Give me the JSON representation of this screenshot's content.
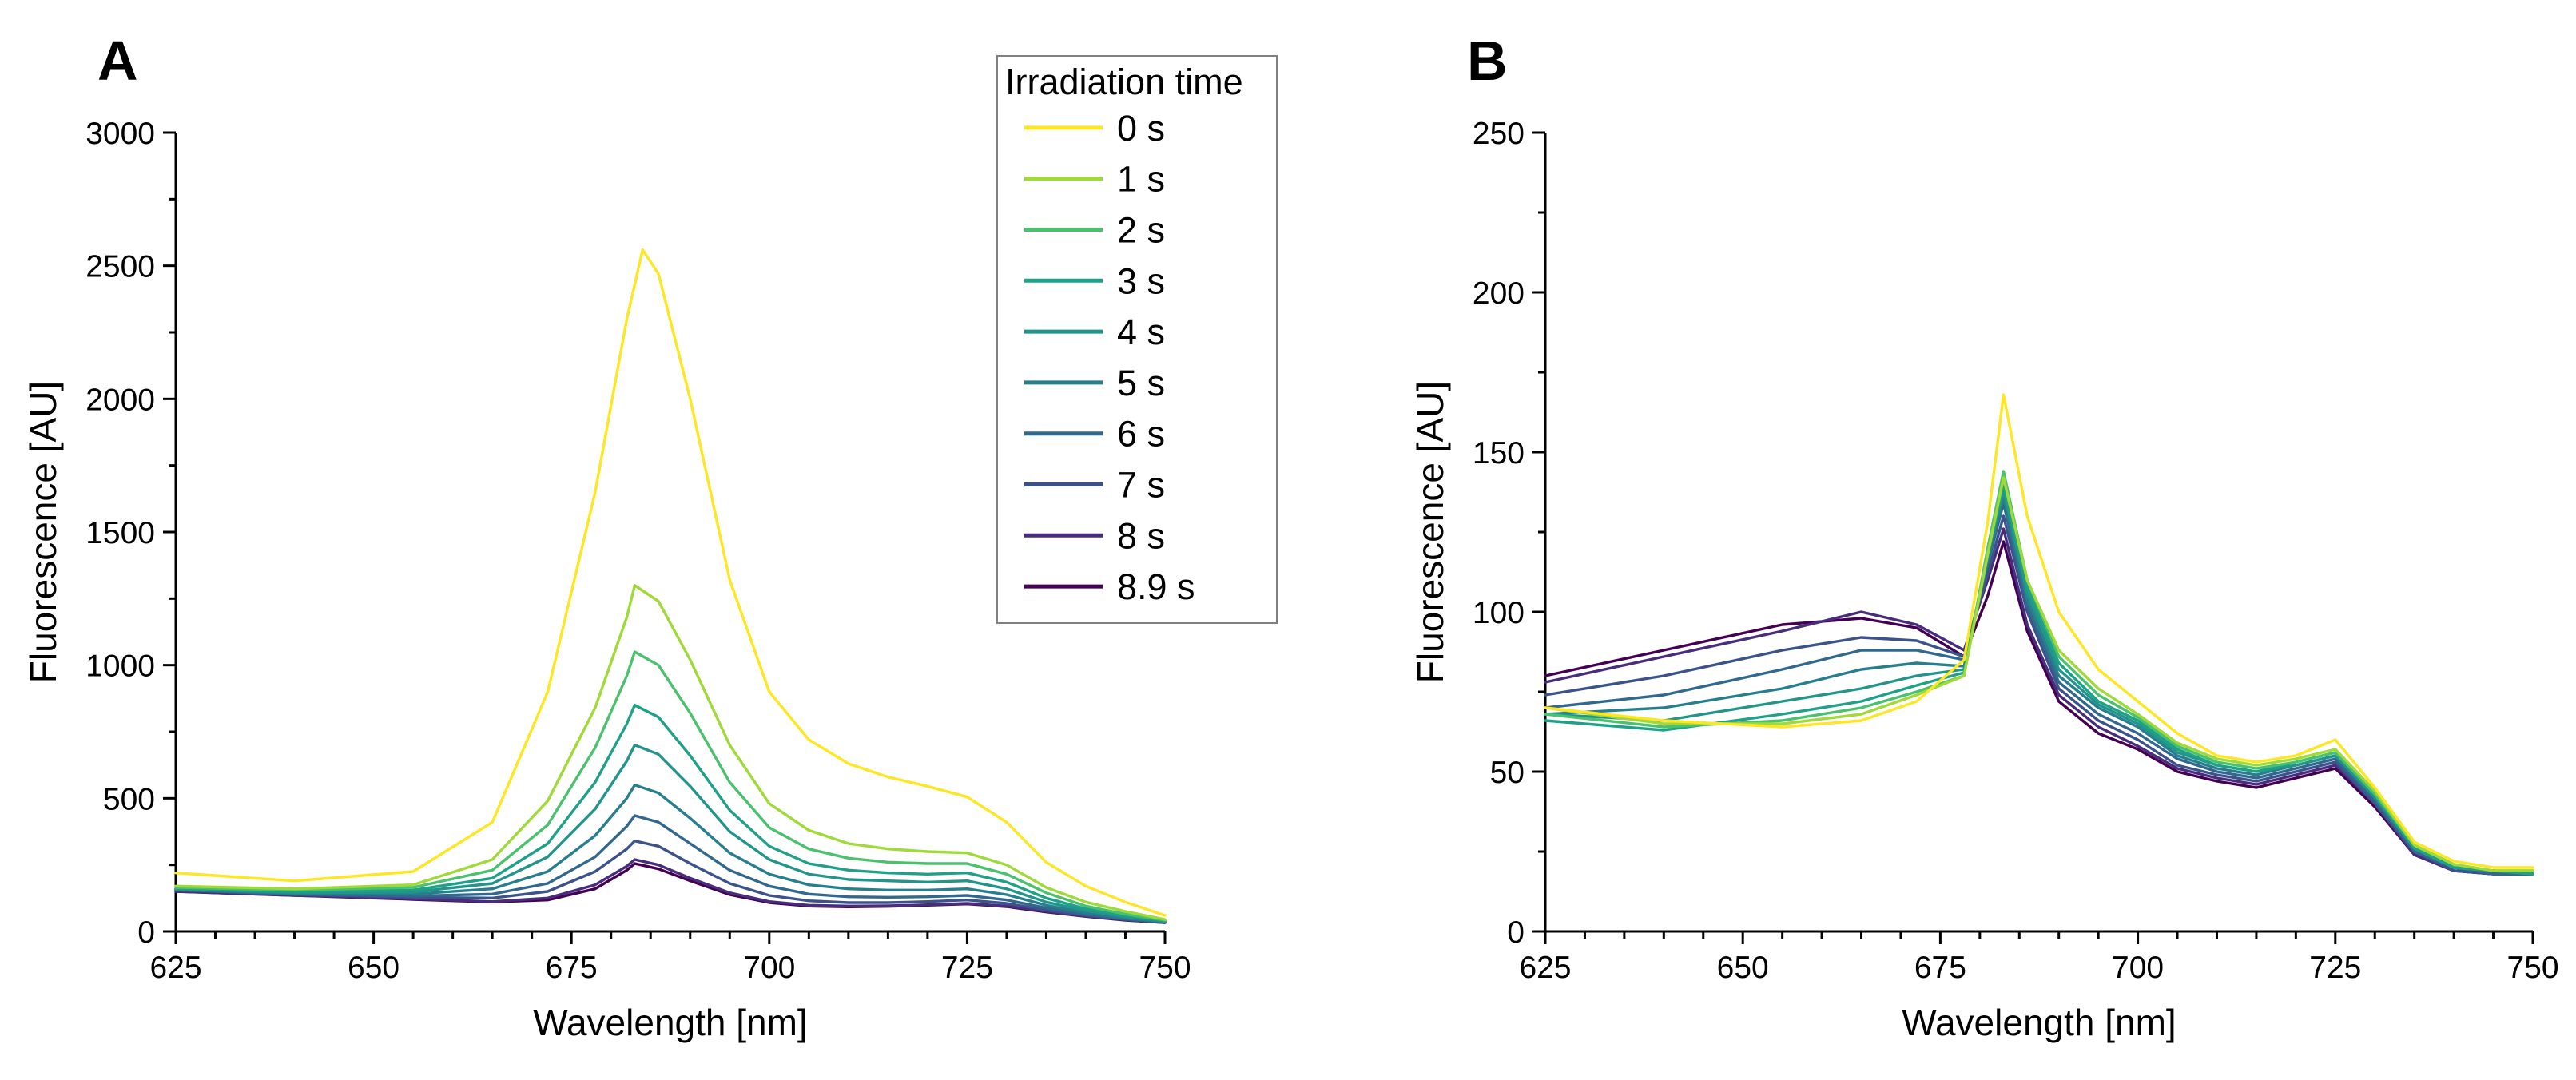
{
  "chart_data": [
    {
      "panel": "A",
      "type": "line",
      "title": "",
      "xlabel": "Wavelength [nm]",
      "ylabel": "Fluorescence [AU]",
      "xlim": [
        625,
        750
      ],
      "ylim": [
        0,
        3000
      ],
      "xticks": [
        625,
        650,
        675,
        700,
        725,
        750
      ],
      "yticks": [
        0,
        500,
        1000,
        1500,
        2000,
        2500,
        3000
      ],
      "legend": {
        "title": "Irradiation time",
        "position": "top-right-inside",
        "entries": [
          "0 s",
          "1 s",
          "2 s",
          "3 s",
          "4 s",
          "5 s",
          "6 s",
          "7 s",
          "8 s",
          "8.9 s"
        ]
      },
      "series": [
        {
          "name": "0 s",
          "color": "#fde725",
          "x": [
            625,
            640,
            655,
            665,
            672,
            678,
            682,
            684,
            686,
            690,
            695,
            700,
            705,
            710,
            715,
            720,
            725,
            730,
            735,
            740,
            745,
            750
          ],
          "y": [
            220,
            190,
            225,
            410,
            900,
            1650,
            2300,
            2560,
            2470,
            2000,
            1320,
            900,
            720,
            630,
            580,
            545,
            505,
            410,
            260,
            170,
            110,
            60
          ]
        },
        {
          "name": "1 s",
          "color": "#a0da39",
          "x": [
            625,
            640,
            655,
            665,
            672,
            678,
            682,
            683,
            686,
            690,
            695,
            700,
            705,
            710,
            715,
            720,
            725,
            730,
            735,
            740,
            745,
            750
          ],
          "y": [
            170,
            160,
            175,
            270,
            490,
            840,
            1180,
            1300,
            1240,
            1020,
            700,
            480,
            380,
            330,
            310,
            300,
            295,
            250,
            165,
            110,
            75,
            45
          ]
        },
        {
          "name": "2 s",
          "color": "#4ac16d",
          "x": [
            625,
            640,
            655,
            665,
            672,
            678,
            682,
            683,
            686,
            690,
            695,
            700,
            705,
            710,
            715,
            720,
            725,
            730,
            735,
            740,
            745,
            750
          ],
          "y": [
            165,
            155,
            165,
            230,
            400,
            690,
            960,
            1050,
            1000,
            820,
            560,
            390,
            310,
            275,
            260,
            255,
            255,
            215,
            145,
            95,
            65,
            42
          ]
        },
        {
          "name": "3 s",
          "color": "#1fa187",
          "x": [
            625,
            640,
            655,
            665,
            672,
            678,
            682,
            683,
            686,
            690,
            695,
            700,
            705,
            710,
            715,
            720,
            725,
            730,
            735,
            740,
            745,
            750
          ],
          "y": [
            160,
            150,
            155,
            200,
            330,
            560,
            780,
            850,
            805,
            660,
            455,
            320,
            255,
            230,
            220,
            215,
            220,
            185,
            125,
            85,
            60,
            40
          ]
        },
        {
          "name": "4 s",
          "color": "#22958b",
          "x": [
            625,
            640,
            655,
            665,
            672,
            678,
            682,
            683,
            686,
            690,
            695,
            700,
            705,
            710,
            715,
            720,
            725,
            730,
            735,
            740,
            745,
            750
          ],
          "y": [
            160,
            145,
            148,
            180,
            280,
            460,
            640,
            700,
            665,
            545,
            375,
            270,
            215,
            195,
            190,
            185,
            190,
            160,
            110,
            78,
            55,
            38
          ]
        },
        {
          "name": "5 s",
          "color": "#277f8e",
          "x": [
            625,
            640,
            655,
            665,
            672,
            678,
            682,
            683,
            686,
            690,
            695,
            700,
            705,
            710,
            715,
            720,
            725,
            730,
            735,
            740,
            745,
            750
          ],
          "y": [
            158,
            142,
            140,
            160,
            225,
            360,
            500,
            550,
            520,
            425,
            295,
            215,
            175,
            160,
            155,
            155,
            160,
            138,
            98,
            70,
            50,
            36
          ]
        },
        {
          "name": "6 s",
          "color": "#31688e",
          "x": [
            625,
            640,
            655,
            665,
            672,
            678,
            682,
            683,
            686,
            690,
            695,
            700,
            705,
            710,
            715,
            720,
            725,
            730,
            735,
            740,
            745,
            750
          ],
          "y": [
            155,
            140,
            133,
            140,
            180,
            280,
            395,
            435,
            410,
            330,
            230,
            170,
            140,
            130,
            128,
            130,
            135,
            118,
            88,
            64,
            47,
            35
          ]
        },
        {
          "name": "7 s",
          "color": "#3b528b",
          "x": [
            625,
            640,
            655,
            665,
            672,
            678,
            682,
            683,
            686,
            690,
            695,
            700,
            705,
            710,
            715,
            720,
            725,
            730,
            735,
            740,
            745,
            750
          ],
          "y": [
            155,
            138,
            128,
            125,
            150,
            225,
            310,
            340,
            320,
            255,
            180,
            135,
            115,
            108,
            108,
            112,
            118,
            105,
            80,
            60,
            45,
            34
          ]
        },
        {
          "name": "8 s",
          "color": "#472d7b",
          "x": [
            625,
            640,
            655,
            665,
            672,
            678,
            682,
            683,
            686,
            690,
            695,
            700,
            705,
            710,
            715,
            720,
            725,
            730,
            735,
            740,
            745,
            750
          ],
          "y": [
            150,
            135,
            122,
            112,
            125,
            175,
            245,
            270,
            250,
            200,
            145,
            112,
            98,
            95,
            96,
            100,
            105,
            95,
            75,
            57,
            43,
            33
          ]
        },
        {
          "name": "8.9 s",
          "color": "#440154",
          "x": [
            625,
            640,
            655,
            665,
            672,
            678,
            682,
            683,
            686,
            690,
            695,
            700,
            705,
            710,
            715,
            720,
            725,
            730,
            735,
            740,
            745,
            750
          ],
          "y": [
            150,
            135,
            120,
            110,
            118,
            160,
            230,
            255,
            235,
            190,
            138,
            108,
            95,
            92,
            94,
            98,
            103,
            93,
            73,
            56,
            42,
            33
          ]
        }
      ]
    },
    {
      "panel": "B",
      "type": "line",
      "title": "",
      "xlabel": "Wavelength [nm]",
      "ylabel": "Fluorescence [AU]",
      "xlim": [
        625,
        750
      ],
      "ylim": [
        0,
        250
      ],
      "xticks": [
        625,
        650,
        675,
        700,
        725,
        750
      ],
      "yticks": [
        0,
        50,
        100,
        150,
        200,
        250
      ],
      "series": [
        {
          "name": "0 s",
          "color": "#fde725",
          "x": [
            625,
            640,
            655,
            665,
            672,
            678,
            681,
            683,
            686,
            690,
            695,
            700,
            705,
            710,
            715,
            720,
            725,
            730,
            735,
            740,
            745,
            750
          ],
          "y": [
            70,
            66,
            64,
            66,
            72,
            85,
            128,
            168,
            130,
            100,
            82,
            72,
            62,
            55,
            53,
            55,
            60,
            45,
            28,
            22,
            20,
            20
          ]
        },
        {
          "name": "1 s",
          "color": "#a0da39",
          "x": [
            625,
            640,
            655,
            665,
            672,
            678,
            681,
            683,
            686,
            690,
            695,
            700,
            705,
            710,
            715,
            720,
            725,
            730,
            735,
            740,
            745,
            750
          ],
          "y": [
            70,
            65,
            65,
            68,
            74,
            80,
            118,
            142,
            110,
            88,
            76,
            68,
            59,
            54,
            52,
            54,
            57,
            44,
            27,
            21,
            19,
            19
          ]
        },
        {
          "name": "2 s",
          "color": "#4ac16d",
          "x": [
            625,
            640,
            655,
            665,
            672,
            678,
            681,
            683,
            686,
            690,
            695,
            700,
            705,
            710,
            715,
            720,
            725,
            730,
            735,
            740,
            745,
            750
          ],
          "y": [
            68,
            64,
            66,
            70,
            75,
            80,
            120,
            144,
            110,
            86,
            74,
            67,
            58,
            53,
            51,
            53,
            56,
            43,
            27,
            21,
            19,
            19
          ]
        },
        {
          "name": "3 s",
          "color": "#1fa187",
          "x": [
            625,
            640,
            655,
            665,
            672,
            678,
            681,
            683,
            686,
            690,
            695,
            700,
            705,
            710,
            715,
            720,
            725,
            730,
            735,
            740,
            745,
            750
          ],
          "y": [
            66,
            63,
            68,
            72,
            77,
            81,
            118,
            140,
            108,
            84,
            72,
            66,
            57,
            52,
            50,
            53,
            56,
            43,
            26,
            20,
            19,
            18
          ]
        },
        {
          "name": "4 s",
          "color": "#22958b",
          "x": [
            625,
            640,
            655,
            665,
            672,
            678,
            681,
            683,
            686,
            690,
            695,
            700,
            705,
            710,
            715,
            720,
            725,
            730,
            735,
            740,
            745,
            750
          ],
          "y": [
            68,
            66,
            72,
            76,
            80,
            82,
            118,
            138,
            106,
            82,
            71,
            65,
            56,
            52,
            50,
            52,
            55,
            42,
            26,
            20,
            19,
            18
          ]
        },
        {
          "name": "5 s",
          "color": "#277f8e",
          "x": [
            625,
            640,
            655,
            665,
            672,
            678,
            681,
            683,
            686,
            690,
            695,
            700,
            705,
            710,
            715,
            720,
            725,
            730,
            735,
            740,
            745,
            750
          ],
          "y": [
            68,
            70,
            76,
            82,
            84,
            83,
            116,
            136,
            104,
            80,
            70,
            64,
            55,
            51,
            49,
            52,
            55,
            42,
            26,
            20,
            19,
            18
          ]
        },
        {
          "name": "6 s",
          "color": "#31688e",
          "x": [
            625,
            640,
            655,
            665,
            672,
            678,
            681,
            683,
            686,
            690,
            695,
            700,
            705,
            710,
            715,
            720,
            725,
            730,
            735,
            740,
            745,
            750
          ],
          "y": [
            70,
            74,
            82,
            88,
            88,
            85,
            115,
            134,
            102,
            78,
            68,
            62,
            54,
            50,
            48,
            51,
            54,
            41,
            25,
            20,
            18,
            18
          ]
        },
        {
          "name": "7 s",
          "color": "#3b528b",
          "x": [
            625,
            640,
            655,
            665,
            672,
            678,
            681,
            683,
            686,
            690,
            695,
            700,
            705,
            710,
            715,
            720,
            725,
            730,
            735,
            740,
            745,
            750
          ],
          "y": [
            74,
            80,
            88,
            92,
            91,
            86,
            112,
            130,
            100,
            76,
            66,
            60,
            52,
            49,
            47,
            50,
            53,
            40,
            25,
            19,
            18,
            18
          ]
        },
        {
          "name": "8 s",
          "color": "#472d7b",
          "x": [
            625,
            640,
            655,
            665,
            672,
            678,
            681,
            683,
            686,
            690,
            695,
            700,
            705,
            710,
            715,
            720,
            725,
            730,
            735,
            740,
            745,
            750
          ],
          "y": [
            78,
            86,
            94,
            100,
            96,
            88,
            110,
            126,
            96,
            74,
            64,
            58,
            51,
            48,
            46,
            49,
            52,
            40,
            24,
            19,
            18,
            18
          ]
        },
        {
          "name": "8.9 s",
          "color": "#440154",
          "x": [
            625,
            640,
            655,
            665,
            672,
            678,
            681,
            683,
            686,
            690,
            695,
            700,
            705,
            710,
            715,
            720,
            725,
            730,
            735,
            740,
            745,
            750
          ],
          "y": [
            80,
            88,
            96,
            98,
            95,
            86,
            105,
            122,
            94,
            72,
            62,
            57,
            50,
            47,
            45,
            48,
            51,
            39,
            24,
            19,
            18,
            18
          ]
        }
      ]
    }
  ]
}
